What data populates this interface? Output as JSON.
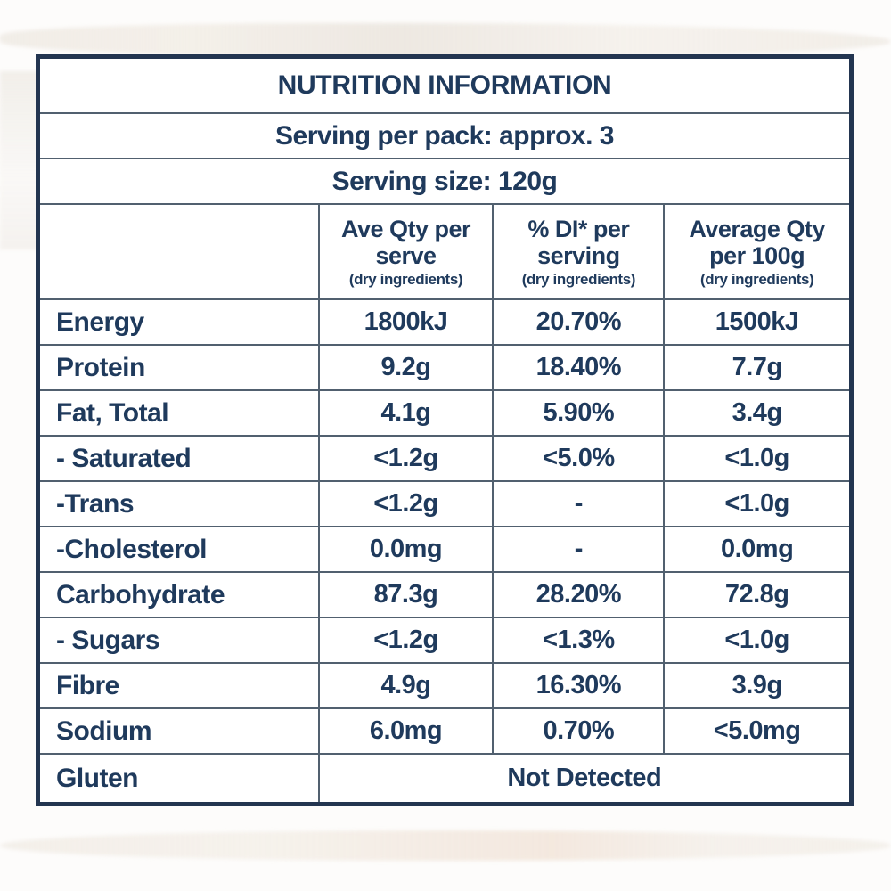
{
  "colors": {
    "text": "#1f3a5c",
    "outer_border": "#233550",
    "grid_line": "#51606f",
    "table_bg": "#ffffff",
    "page_bg": "#fdfcfb"
  },
  "table": {
    "title": "NUTRITION INFORMATION",
    "serving_per_pack": "Serving per pack: approx. 3",
    "serving_size": "Serving size: 120g",
    "columns": [
      {
        "label": "",
        "note": ""
      },
      {
        "label": "Ave Qty per serve",
        "note": "(dry ingredients)"
      },
      {
        "label": "% DI* per serving",
        "note": "(dry ingredients)"
      },
      {
        "label": "Average Qty per 100g",
        "note": "(dry ingredients)"
      }
    ],
    "rows": [
      {
        "label": "Energy",
        "values": [
          "1800kJ",
          "20.70%",
          "1500kJ"
        ]
      },
      {
        "label": "Protein",
        "values": [
          "9.2g",
          "18.40%",
          "7.7g"
        ]
      },
      {
        "label": "Fat, Total",
        "values": [
          "4.1g",
          "5.90%",
          "3.4g"
        ]
      },
      {
        "label": "- Saturated",
        "values": [
          "<1.2g",
          "<5.0%",
          "<1.0g"
        ]
      },
      {
        "label": "-Trans",
        "values": [
          "<1.2g",
          "-",
          "<1.0g"
        ]
      },
      {
        "label": "-Cholesterol",
        "values": [
          "0.0mg",
          "-",
          "0.0mg"
        ]
      },
      {
        "label": "Carbohydrate",
        "values": [
          "87.3g",
          "28.20%",
          "72.8g"
        ]
      },
      {
        "label": "- Sugars",
        "values": [
          "<1.2g",
          "<1.3%",
          "<1.0g"
        ]
      },
      {
        "label": "Fibre",
        "values": [
          "4.9g",
          "16.30%",
          "3.9g"
        ]
      },
      {
        "label": "Sodium",
        "values": [
          "6.0mg",
          "0.70%",
          "<5.0mg"
        ]
      }
    ],
    "gluten_row": {
      "label": "Gluten",
      "value": "Not Detected"
    }
  }
}
